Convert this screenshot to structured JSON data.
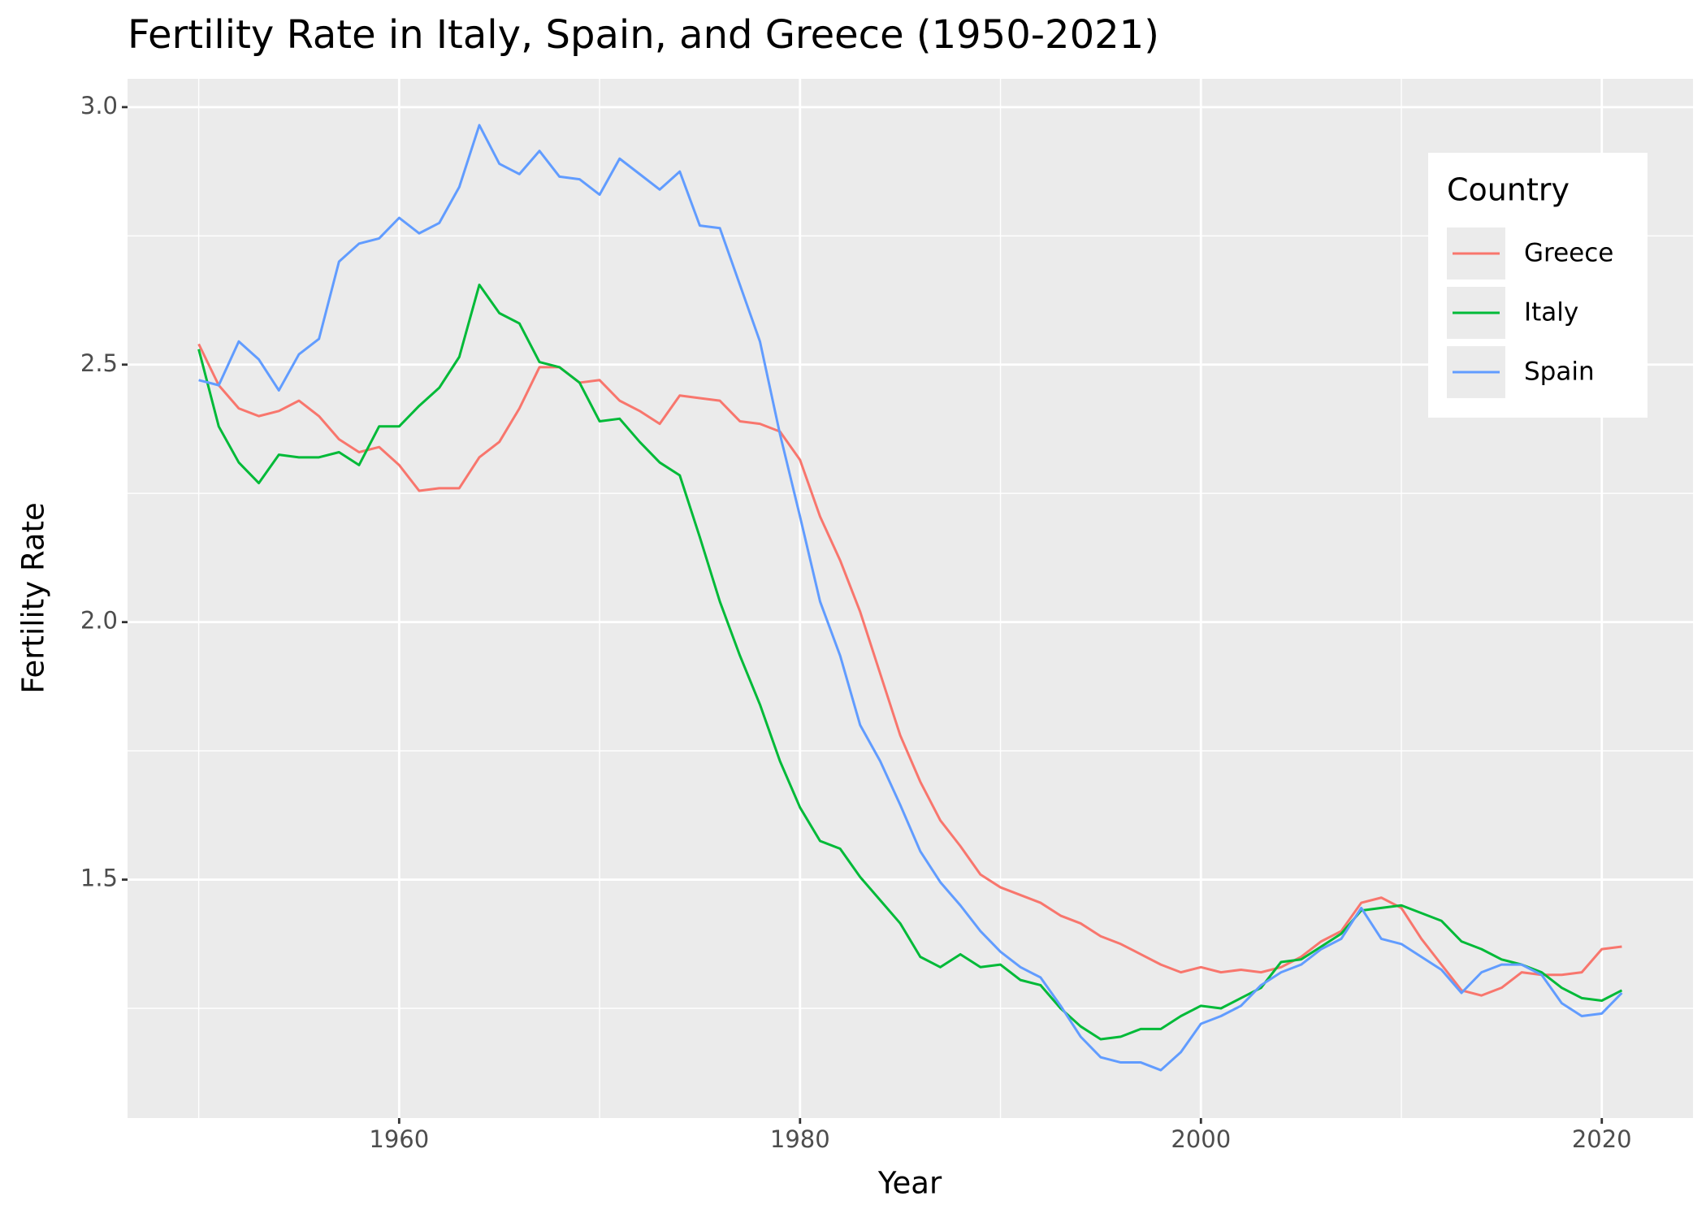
{
  "chart_data": {
    "type": "line",
    "title": "Fertility Rate in Italy, Spain, and Greece (1950-2021)",
    "x_label": "Year",
    "y_label": "Fertility Rate",
    "legend_title": "Country",
    "legend_position": "top-right",
    "grid": true,
    "x": [
      1950,
      1951,
      1952,
      1953,
      1954,
      1955,
      1956,
      1957,
      1958,
      1959,
      1960,
      1961,
      1962,
      1963,
      1964,
      1965,
      1966,
      1967,
      1968,
      1969,
      1970,
      1971,
      1972,
      1973,
      1974,
      1975,
      1976,
      1977,
      1978,
      1979,
      1980,
      1981,
      1982,
      1983,
      1984,
      1985,
      1986,
      1987,
      1988,
      1989,
      1990,
      1991,
      1992,
      1993,
      1994,
      1995,
      1996,
      1997,
      1998,
      1999,
      2000,
      2001,
      2002,
      2003,
      2004,
      2005,
      2006,
      2007,
      2008,
      2009,
      2010,
      2011,
      2012,
      2013,
      2014,
      2015,
      2016,
      2017,
      2018,
      2019,
      2020,
      2021
    ],
    "series": [
      {
        "name": "Greece",
        "color": "#F8766D",
        "values": [
          2.54,
          2.46,
          2.415,
          2.4,
          2.41,
          2.43,
          2.4,
          2.355,
          2.33,
          2.34,
          2.305,
          2.255,
          2.26,
          2.26,
          2.32,
          2.35,
          2.415,
          2.495,
          2.495,
          2.465,
          2.47,
          2.43,
          2.41,
          2.385,
          2.44,
          2.435,
          2.43,
          2.39,
          2.385,
          2.37,
          2.315,
          2.205,
          2.12,
          2.02,
          1.9,
          1.78,
          1.69,
          1.615,
          1.565,
          1.51,
          1.485,
          1.47,
          1.455,
          1.43,
          1.415,
          1.39,
          1.375,
          1.355,
          1.335,
          1.32,
          1.33,
          1.32,
          1.325,
          1.32,
          1.33,
          1.35,
          1.38,
          1.4,
          1.455,
          1.465,
          1.445,
          1.385,
          1.335,
          1.285,
          1.275,
          1.29,
          1.32,
          1.315,
          1.315,
          1.32,
          1.365,
          1.37
        ]
      },
      {
        "name": "Italy",
        "color": "#00BA38",
        "values": [
          2.53,
          2.38,
          2.31,
          2.27,
          2.325,
          2.32,
          2.32,
          2.33,
          2.305,
          2.38,
          2.38,
          2.42,
          2.455,
          2.515,
          2.655,
          2.6,
          2.58,
          2.505,
          2.495,
          2.465,
          2.39,
          2.395,
          2.35,
          2.31,
          2.285,
          2.165,
          2.04,
          1.935,
          1.84,
          1.73,
          1.64,
          1.575,
          1.56,
          1.505,
          1.46,
          1.415,
          1.35,
          1.33,
          1.355,
          1.33,
          1.335,
          1.305,
          1.295,
          1.25,
          1.215,
          1.19,
          1.195,
          1.21,
          1.21,
          1.235,
          1.255,
          1.25,
          1.27,
          1.29,
          1.34,
          1.345,
          1.37,
          1.395,
          1.44,
          1.445,
          1.45,
          1.435,
          1.42,
          1.38,
          1.365,
          1.345,
          1.335,
          1.32,
          1.29,
          1.27,
          1.265,
          1.285
        ]
      },
      {
        "name": "Spain",
        "color": "#619CFF",
        "values": [
          2.47,
          2.46,
          2.545,
          2.51,
          2.45,
          2.52,
          2.55,
          2.7,
          2.735,
          2.745,
          2.785,
          2.755,
          2.775,
          2.845,
          2.965,
          2.89,
          2.87,
          2.915,
          2.865,
          2.86,
          2.83,
          2.9,
          2.87,
          2.84,
          2.875,
          2.77,
          2.765,
          2.655,
          2.545,
          2.365,
          2.205,
          2.04,
          1.935,
          1.8,
          1.73,
          1.645,
          1.555,
          1.495,
          1.45,
          1.4,
          1.36,
          1.33,
          1.31,
          1.255,
          1.195,
          1.155,
          1.145,
          1.145,
          1.13,
          1.165,
          1.22,
          1.235,
          1.255,
          1.295,
          1.32,
          1.335,
          1.365,
          1.385,
          1.445,
          1.385,
          1.375,
          1.35,
          1.325,
          1.28,
          1.32,
          1.335,
          1.335,
          1.315,
          1.26,
          1.235,
          1.24,
          1.28
        ]
      }
    ],
    "xlim": [
      1946.45,
      2024.55
    ],
    "xticks": [
      1960,
      1980,
      2000,
      2020
    ],
    "x_minor_ticks": [
      1950,
      1970,
      1990,
      2010
    ],
    "ylim": [
      1.037,
      3.055
    ],
    "yticks": [
      {
        "value": 3,
        "label": "3.0"
      },
      2.5,
      {
        "value": 2,
        "label": "2.0"
      },
      1.5
    ],
    "y_minor_ticks": [
      1.25,
      1.75,
      2.25,
      2.75
    ]
  }
}
